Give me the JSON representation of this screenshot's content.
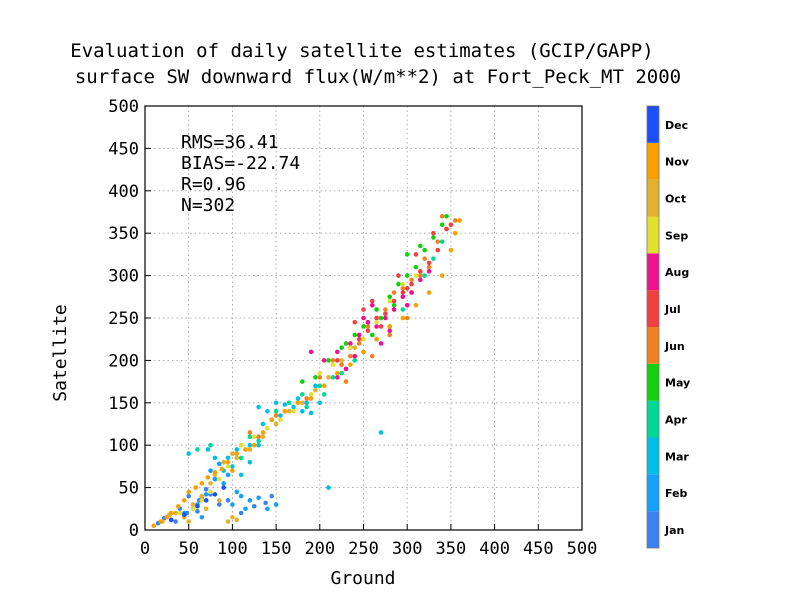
{
  "chart_data": {
    "type": "scatter",
    "title": "Evaluation of daily satellite estimates (GCIP/GAPP)",
    "subtitle": "surface SW downward flux(W/m**2) at Fort_Peck_MT 2000",
    "xlabel": "Ground",
    "ylabel": "Satellite",
    "xlim": [
      0,
      500
    ],
    "ylim": [
      0,
      500
    ],
    "xticks": [
      0,
      50,
      100,
      150,
      200,
      250,
      300,
      350,
      400,
      450,
      500
    ],
    "yticks": [
      0,
      50,
      100,
      150,
      200,
      250,
      300,
      350,
      400,
      450,
      500
    ],
    "grid": true,
    "stats": {
      "rms": "RMS=36.41",
      "bias": "BIAS=-22.74",
      "r": "R=0.96",
      "n": "N=302"
    },
    "colorbar": {
      "placement": "right",
      "months": [
        {
          "label": "Jan",
          "color": "#3b82f0"
        },
        {
          "label": "Feb",
          "color": "#14a0ff"
        },
        {
          "label": "Mar",
          "color": "#00c0e8"
        },
        {
          "label": "Apr",
          "color": "#00d896"
        },
        {
          "label": "May",
          "color": "#10d010"
        },
        {
          "label": "Jun",
          "color": "#f08020"
        },
        {
          "label": "Jul",
          "color": "#f04040"
        },
        {
          "label": "Aug",
          "color": "#f01090"
        },
        {
          "label": "Sep",
          "color": "#e4e030"
        },
        {
          "label": "Oct",
          "color": "#e4b030"
        },
        {
          "label": "Nov",
          "color": "#f8a000"
        },
        {
          "label": "Dec",
          "color": "#1a50ff"
        }
      ]
    },
    "series": [
      {
        "month": "Jan",
        "points": [
          [
            15,
            8
          ],
          [
            22,
            14
          ],
          [
            28,
            18
          ],
          [
            35,
            10
          ],
          [
            40,
            25
          ],
          [
            48,
            20
          ],
          [
            55,
            30
          ],
          [
            60,
            22
          ],
          [
            65,
            38
          ],
          [
            75,
            42
          ],
          [
            85,
            30
          ],
          [
            95,
            35
          ],
          [
            110,
            20
          ],
          [
            125,
            28
          ],
          [
            138,
            32
          ],
          [
            145,
            40
          ],
          [
            80,
            60
          ],
          [
            70,
            48
          ],
          [
            62,
            35
          ],
          [
            50,
            40
          ]
        ]
      },
      {
        "month": "Feb",
        "points": [
          [
            55,
            25
          ],
          [
            60,
            30
          ],
          [
            70,
            42
          ],
          [
            80,
            60
          ],
          [
            90,
            55
          ],
          [
            100,
            30
          ],
          [
            110,
            40
          ],
          [
            120,
            35
          ],
          [
            130,
            38
          ],
          [
            140,
            25
          ],
          [
            75,
            70
          ],
          [
            85,
            78
          ],
          [
            95,
            65
          ],
          [
            45,
            20
          ],
          [
            65,
            15
          ],
          [
            105,
            45
          ],
          [
            115,
            25
          ],
          [
            150,
            30
          ]
        ]
      },
      {
        "month": "Mar",
        "points": [
          [
            50,
            90
          ],
          [
            72,
            95
          ],
          [
            80,
            85
          ],
          [
            95,
            85
          ],
          [
            100,
            75
          ],
          [
            110,
            65
          ],
          [
            120,
            80
          ],
          [
            130,
            100
          ],
          [
            135,
            125
          ],
          [
            140,
            140
          ],
          [
            150,
            150
          ],
          [
            160,
            148
          ],
          [
            170,
            145
          ],
          [
            180,
            140
          ],
          [
            190,
            138
          ],
          [
            200,
            150
          ],
          [
            210,
            50
          ],
          [
            270,
            115
          ],
          [
            130,
            145
          ],
          [
            165,
            140
          ],
          [
            145,
            130
          ],
          [
            175,
            155
          ],
          [
            90,
            70
          ],
          [
            105,
            95
          ],
          [
            120,
            100
          ],
          [
            155,
            135
          ],
          [
            185,
            150
          ],
          [
            195,
            170
          ]
        ]
      },
      {
        "month": "Apr",
        "points": [
          [
            60,
            95
          ],
          [
            75,
            100
          ],
          [
            90,
            80
          ],
          [
            110,
            85
          ],
          [
            120,
            110
          ],
          [
            130,
            105
          ],
          [
            140,
            120
          ],
          [
            150,
            140
          ],
          [
            165,
            150
          ],
          [
            180,
            160
          ],
          [
            200,
            170
          ],
          [
            215,
            180
          ],
          [
            230,
            190
          ],
          [
            240,
            200
          ],
          [
            250,
            210
          ],
          [
            265,
            225
          ],
          [
            280,
            240
          ],
          [
            295,
            260
          ],
          [
            305,
            280
          ],
          [
            320,
            300
          ],
          [
            330,
            320
          ],
          [
            340,
            340
          ],
          [
            185,
            145
          ],
          [
            205,
            160
          ],
          [
            225,
            185
          ]
        ]
      },
      {
        "month": "May",
        "points": [
          [
            180,
            175
          ],
          [
            195,
            180
          ],
          [
            210,
            200
          ],
          [
            225,
            215
          ],
          [
            240,
            230
          ],
          [
            255,
            245
          ],
          [
            265,
            260
          ],
          [
            280,
            275
          ],
          [
            290,
            290
          ],
          [
            300,
            300
          ],
          [
            310,
            310
          ],
          [
            320,
            330
          ],
          [
            330,
            345
          ],
          [
            340,
            360
          ],
          [
            345,
            370
          ],
          [
            270,
            250
          ],
          [
            250,
            240
          ],
          [
            230,
            220
          ],
          [
            300,
            325
          ],
          [
            315,
            335
          ],
          [
            285,
            265
          ],
          [
            260,
            230
          ]
        ]
      },
      {
        "month": "Jun",
        "points": [
          [
            100,
            90
          ],
          [
            110,
            100
          ],
          [
            120,
            115
          ],
          [
            130,
            110
          ],
          [
            150,
            135
          ],
          [
            160,
            140
          ],
          [
            175,
            150
          ],
          [
            185,
            155
          ],
          [
            200,
            180
          ],
          [
            215,
            200
          ],
          [
            225,
            195
          ],
          [
            235,
            205
          ],
          [
            245,
            220
          ],
          [
            255,
            240
          ],
          [
            265,
            250
          ],
          [
            275,
            260
          ],
          [
            285,
            280
          ],
          [
            295,
            285
          ],
          [
            305,
            295
          ],
          [
            315,
            300
          ],
          [
            325,
            310
          ],
          [
            335,
            340
          ],
          [
            345,
            355
          ],
          [
            355,
            365
          ],
          [
            230,
            175
          ],
          [
            260,
            205
          ],
          [
            280,
            230
          ],
          [
            300,
            250
          ],
          [
            320,
            320
          ],
          [
            340,
            370
          ]
        ]
      },
      {
        "month": "Jul",
        "points": [
          [
            220,
            200
          ],
          [
            235,
            215
          ],
          [
            245,
            225
          ],
          [
            255,
            235
          ],
          [
            265,
            250
          ],
          [
            275,
            255
          ],
          [
            285,
            270
          ],
          [
            295,
            280
          ],
          [
            305,
            290
          ],
          [
            315,
            305
          ],
          [
            325,
            315
          ],
          [
            335,
            330
          ],
          [
            345,
            355
          ],
          [
            350,
            360
          ],
          [
            240,
            245
          ],
          [
            250,
            260
          ],
          [
            270,
            240
          ],
          [
            290,
            300
          ],
          [
            310,
            325
          ],
          [
            330,
            350
          ],
          [
            260,
            270
          ],
          [
            300,
            285
          ]
        ]
      },
      {
        "month": "Aug",
        "points": [
          [
            190,
            210
          ],
          [
            205,
            200
          ],
          [
            220,
            210
          ],
          [
            235,
            220
          ],
          [
            245,
            230
          ],
          [
            255,
            245
          ],
          [
            265,
            240
          ],
          [
            275,
            250
          ],
          [
            285,
            260
          ],
          [
            295,
            275
          ],
          [
            305,
            280
          ],
          [
            315,
            295
          ],
          [
            325,
            305
          ],
          [
            230,
            190
          ],
          [
            240,
            205
          ],
          [
            250,
            250
          ],
          [
            260,
            265
          ],
          [
            270,
            220
          ],
          [
            280,
            235
          ],
          [
            300,
            265
          ],
          [
            220,
            180
          ]
        ]
      },
      {
        "month": "Sep",
        "points": [
          [
            40,
            20
          ],
          [
            55,
            25
          ],
          [
            65,
            35
          ],
          [
            75,
            45
          ],
          [
            85,
            60
          ],
          [
            95,
            75
          ],
          [
            110,
            100
          ],
          [
            125,
            110
          ],
          [
            140,
            120
          ],
          [
            155,
            130
          ],
          [
            170,
            140
          ],
          [
            190,
            160
          ],
          [
            200,
            185
          ],
          [
            215,
            195
          ],
          [
            235,
            215
          ],
          [
            250,
            225
          ],
          [
            265,
            245
          ],
          [
            280,
            270
          ],
          [
            295,
            290
          ],
          [
            310,
            300
          ]
        ]
      },
      {
        "month": "Oct",
        "points": [
          [
            20,
            10
          ],
          [
            28,
            18
          ],
          [
            35,
            20
          ],
          [
            45,
            15
          ],
          [
            55,
            30
          ],
          [
            65,
            40
          ],
          [
            75,
            55
          ],
          [
            80,
            65
          ],
          [
            90,
            80
          ],
          [
            100,
            90
          ],
          [
            105,
            85
          ],
          [
            120,
            95
          ],
          [
            135,
            110
          ],
          [
            150,
            125
          ],
          [
            165,
            140
          ],
          [
            180,
            150
          ],
          [
            195,
            165
          ],
          [
            210,
            180
          ],
          [
            225,
            200
          ],
          [
            240,
            215
          ],
          [
            95,
            10
          ],
          [
            100,
            15
          ],
          [
            105,
            12
          ],
          [
            85,
            35
          ],
          [
            70,
            25
          ],
          [
            50,
            10
          ]
        ]
      },
      {
        "month": "Nov",
        "points": [
          [
            10,
            5
          ],
          [
            18,
            10
          ],
          [
            25,
            15
          ],
          [
            30,
            20
          ],
          [
            38,
            28
          ],
          [
            45,
            35
          ],
          [
            50,
            45
          ],
          [
            58,
            50
          ],
          [
            65,
            55
          ],
          [
            72,
            62
          ],
          [
            80,
            68
          ],
          [
            88,
            72
          ],
          [
            95,
            80
          ],
          [
            105,
            90
          ],
          [
            115,
            95
          ],
          [
            125,
            100
          ],
          [
            135,
            115
          ],
          [
            145,
            130
          ],
          [
            160,
            140
          ],
          [
            175,
            150
          ],
          [
            190,
            155
          ],
          [
            205,
            170
          ],
          [
            220,
            185
          ],
          [
            235,
            195
          ],
          [
            250,
            210
          ],
          [
            265,
            225
          ],
          [
            280,
            240
          ],
          [
            295,
            250
          ],
          [
            310,
            265
          ],
          [
            325,
            280
          ],
          [
            340,
            300
          ],
          [
            350,
            330
          ],
          [
            355,
            350
          ],
          [
            360,
            365
          ],
          [
            100,
            70
          ]
        ]
      },
      {
        "month": "Dec",
        "points": [
          [
            30,
            12
          ],
          [
            45,
            18
          ],
          [
            60,
            28
          ],
          [
            70,
            35
          ],
          [
            80,
            42
          ],
          [
            90,
            50
          ]
        ]
      }
    ]
  }
}
